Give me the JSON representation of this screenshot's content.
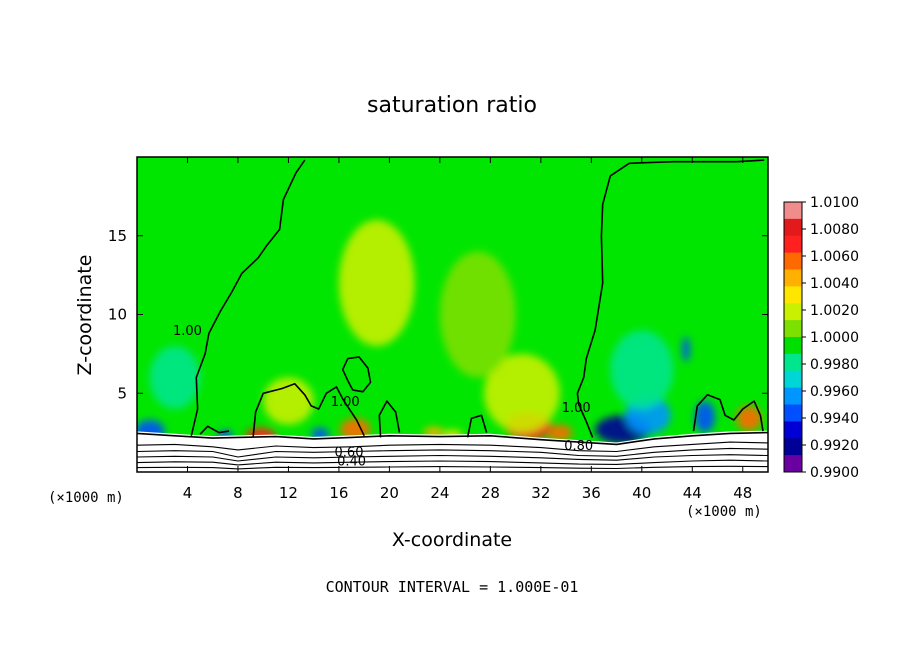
{
  "chart_data": {
    "type": "heatmap",
    "title": "saturation ratio",
    "xlabel": "X-coordinate",
    "ylabel": "Z-coordinate",
    "x_unit": "(×1000 m)",
    "x_unit_right": "(×1000 m)",
    "xlim": [
      0,
      50
    ],
    "ylim": [
      0,
      20
    ],
    "x_ticks": [
      4,
      8,
      12,
      16,
      20,
      24,
      28,
      32,
      36,
      40,
      44,
      48
    ],
    "y_ticks": [
      5,
      10,
      15
    ],
    "footer": "CONTOUR INTERVAL = 1.000E-01",
    "colorbar": {
      "labels": [
        "1.0100",
        "1.0080",
        "1.0060",
        "1.0040",
        "1.0020",
        "1.0000",
        "0.9980",
        "0.9960",
        "0.9940",
        "0.9920",
        "0.9900"
      ],
      "colors": [
        "#f08c8c",
        "#e31a1c",
        "#ff2020",
        "#ff6a00",
        "#ffb000",
        "#ffe600",
        "#c8f000",
        "#7ce000",
        "#00e000",
        "#00e68c",
        "#00d6d6",
        "#0096ff",
        "#0050ff",
        "#0000d6",
        "#000096",
        "#6a00a0"
      ]
    },
    "contour_labels": [
      {
        "text": "1.00",
        "x": 4.0,
        "y": 8.7
      },
      {
        "text": "1.00",
        "x": 16.5,
        "y": 4.2
      },
      {
        "text": "1.00",
        "x": 34.8,
        "y": 3.8
      },
      {
        "text": "0.80",
        "x": 35.0,
        "y": 1.4
      },
      {
        "text": "0.60",
        "x": 16.8,
        "y": 1.0
      },
      {
        "text": "0.40",
        "x": 17.0,
        "y": 0.4
      }
    ],
    "contours": [
      {
        "name": "sat-1.00-left",
        "points": [
          [
            4.3,
            2.3
          ],
          [
            4.8,
            4.0
          ],
          [
            4.7,
            6.0
          ],
          [
            5.4,
            7.5
          ],
          [
            5.7,
            8.8
          ],
          [
            6.6,
            10.2
          ],
          [
            7.5,
            11.4
          ],
          [
            8.3,
            12.6
          ],
          [
            9.6,
            13.6
          ],
          [
            10.3,
            14.4
          ],
          [
            11.3,
            15.4
          ],
          [
            11.6,
            17.3
          ],
          [
            12.6,
            19.0
          ],
          [
            13.3,
            19.8
          ]
        ]
      },
      {
        "name": "sat-1.00-right",
        "points": [
          [
            36.1,
            2.2
          ],
          [
            35.6,
            3.2
          ],
          [
            35.0,
            4.3
          ],
          [
            34.9,
            5.0
          ],
          [
            35.4,
            6.0
          ],
          [
            35.6,
            7.2
          ],
          [
            36.3,
            9.0
          ],
          [
            36.9,
            12.0
          ],
          [
            36.8,
            15.0
          ],
          [
            36.9,
            17.0
          ],
          [
            37.5,
            18.8
          ],
          [
            39.0,
            19.6
          ],
          [
            42.5,
            19.7
          ],
          [
            47.5,
            19.7
          ],
          [
            49.7,
            19.8
          ]
        ]
      },
      {
        "name": "sat-1.00-loop-a",
        "points": [
          [
            17.1,
            5.2
          ],
          [
            16.7,
            5.8
          ],
          [
            16.3,
            6.5
          ],
          [
            16.7,
            7.2
          ],
          [
            17.6,
            7.3
          ],
          [
            18.3,
            6.6
          ],
          [
            18.5,
            5.7
          ],
          [
            17.9,
            5.1
          ],
          [
            17.1,
            5.2
          ]
        ]
      },
      {
        "name": "sat-1.00-bumps",
        "points": [
          [
            9.2,
            2.2
          ],
          [
            9.4,
            3.8
          ],
          [
            10.0,
            5.0
          ],
          [
            11.5,
            5.3
          ],
          [
            12.5,
            5.6
          ],
          [
            13.3,
            4.9
          ],
          [
            13.8,
            4.2
          ],
          [
            14.4,
            4.0
          ],
          [
            15.0,
            5.0
          ],
          [
            15.8,
            5.4
          ],
          [
            16.4,
            4.5
          ],
          [
            17.4,
            3.3
          ],
          [
            18.0,
            2.3
          ]
        ]
      },
      {
        "name": "sat-1.00-bump-b",
        "points": [
          [
            19.3,
            2.2
          ],
          [
            19.2,
            3.6
          ],
          [
            19.8,
            4.5
          ],
          [
            20.5,
            3.8
          ],
          [
            20.8,
            2.5
          ]
        ]
      },
      {
        "name": "sat-1.00-bump-c",
        "points": [
          [
            26.2,
            2.2
          ],
          [
            26.5,
            3.4
          ],
          [
            27.3,
            3.6
          ],
          [
            27.7,
            2.5
          ]
        ]
      },
      {
        "name": "sat-1.00-bump-d",
        "points": [
          [
            5.0,
            2.4
          ],
          [
            5.6,
            2.9
          ],
          [
            6.5,
            2.5
          ],
          [
            7.3,
            2.6
          ]
        ]
      },
      {
        "name": "sat-1.00-east",
        "points": [
          [
            44.1,
            2.6
          ],
          [
            44.4,
            4.2
          ],
          [
            45.2,
            4.9
          ],
          [
            46.2,
            4.6
          ],
          [
            46.6,
            3.6
          ],
          [
            47.3,
            3.3
          ],
          [
            48.0,
            4.0
          ],
          [
            48.9,
            4.5
          ],
          [
            49.4,
            3.6
          ],
          [
            49.6,
            2.6
          ]
        ]
      },
      {
        "name": "sat-0.90",
        "points": [
          [
            0,
            2.45
          ],
          [
            3,
            2.3
          ],
          [
            6,
            2.15
          ],
          [
            8,
            2.2
          ],
          [
            11,
            2.25
          ],
          [
            14,
            2.1
          ],
          [
            17,
            2.2
          ],
          [
            20,
            2.3
          ],
          [
            24,
            2.25
          ],
          [
            28,
            2.3
          ],
          [
            32,
            2.05
          ],
          [
            35,
            1.9
          ],
          [
            38,
            1.75
          ],
          [
            41,
            2.1
          ],
          [
            44,
            2.3
          ],
          [
            47,
            2.45
          ],
          [
            50,
            2.5
          ]
        ]
      },
      {
        "name": "sat-0.80",
        "points": [
          [
            0,
            1.7
          ],
          [
            3,
            1.75
          ],
          [
            6,
            1.6
          ],
          [
            8,
            1.4
          ],
          [
            11,
            1.65
          ],
          [
            14,
            1.55
          ],
          [
            17,
            1.6
          ],
          [
            20,
            1.7
          ],
          [
            24,
            1.75
          ],
          [
            28,
            1.7
          ],
          [
            32,
            1.55
          ],
          [
            35,
            1.35
          ],
          [
            38,
            1.3
          ],
          [
            41,
            1.6
          ],
          [
            44,
            1.75
          ],
          [
            47,
            1.9
          ],
          [
            50,
            1.85
          ]
        ]
      },
      {
        "name": "sat-0.70",
        "points": [
          [
            0,
            1.3
          ],
          [
            3,
            1.35
          ],
          [
            6,
            1.3
          ],
          [
            8,
            0.95
          ],
          [
            11,
            1.3
          ],
          [
            14,
            1.25
          ],
          [
            17,
            1.3
          ],
          [
            20,
            1.35
          ],
          [
            24,
            1.4
          ],
          [
            28,
            1.35
          ],
          [
            32,
            1.25
          ],
          [
            35,
            1.05
          ],
          [
            38,
            1.0
          ],
          [
            41,
            1.25
          ],
          [
            44,
            1.4
          ],
          [
            47,
            1.5
          ],
          [
            50,
            1.45
          ]
        ]
      },
      {
        "name": "sat-0.60",
        "points": [
          [
            0,
            0.95
          ],
          [
            3,
            1.0
          ],
          [
            6,
            0.95
          ],
          [
            8,
            0.7
          ],
          [
            11,
            0.95
          ],
          [
            14,
            0.9
          ],
          [
            17,
            0.95
          ],
          [
            20,
            1.0
          ],
          [
            24,
            1.05
          ],
          [
            28,
            1.0
          ],
          [
            32,
            0.9
          ],
          [
            35,
            0.8
          ],
          [
            38,
            0.75
          ],
          [
            41,
            0.95
          ],
          [
            44,
            1.05
          ],
          [
            47,
            1.1
          ],
          [
            50,
            1.05
          ]
        ]
      },
      {
        "name": "sat-0.50",
        "points": [
          [
            0,
            0.6
          ],
          [
            3,
            0.65
          ],
          [
            6,
            0.62
          ],
          [
            8,
            0.45
          ],
          [
            11,
            0.62
          ],
          [
            14,
            0.58
          ],
          [
            17,
            0.62
          ],
          [
            20,
            0.66
          ],
          [
            24,
            0.7
          ],
          [
            28,
            0.66
          ],
          [
            32,
            0.58
          ],
          [
            35,
            0.5
          ],
          [
            38,
            0.48
          ],
          [
            41,
            0.6
          ],
          [
            44,
            0.7
          ],
          [
            47,
            0.75
          ],
          [
            50,
            0.7
          ]
        ]
      },
      {
        "name": "sat-0.40",
        "points": [
          [
            0,
            0.28
          ],
          [
            3,
            0.3
          ],
          [
            6,
            0.28
          ],
          [
            8,
            0.2
          ],
          [
            11,
            0.3
          ],
          [
            14,
            0.28
          ],
          [
            17,
            0.3
          ],
          [
            20,
            0.32
          ],
          [
            24,
            0.34
          ],
          [
            28,
            0.32
          ],
          [
            32,
            0.28
          ],
          [
            35,
            0.24
          ],
          [
            38,
            0.22
          ],
          [
            41,
            0.3
          ],
          [
            44,
            0.34
          ],
          [
            47,
            0.36
          ],
          [
            50,
            0.34
          ]
        ]
      }
    ],
    "anomalies": [
      {
        "x": 1.0,
        "y": 2.6,
        "v": -0.006,
        "rx": 1.2,
        "ry": 0.7
      },
      {
        "x": 9.8,
        "y": 2.3,
        "v": 0.007,
        "rx": 1.2,
        "ry": 0.5
      },
      {
        "x": 7.0,
        "y": 2.3,
        "v": -0.006,
        "rx": 0.6,
        "ry": 0.35
      },
      {
        "x": 17.3,
        "y": 2.7,
        "v": 0.006,
        "rx": 1.2,
        "ry": 0.7
      },
      {
        "x": 14.5,
        "y": 2.4,
        "v": -0.006,
        "rx": 0.7,
        "ry": 0.4
      },
      {
        "x": 31.0,
        "y": 2.9,
        "v": 0.007,
        "rx": 1.8,
        "ry": 0.9
      },
      {
        "x": 33.5,
        "y": 2.5,
        "v": 0.006,
        "rx": 1.0,
        "ry": 0.5
      },
      {
        "x": 38.5,
        "y": 2.7,
        "v": -0.008,
        "rx": 2.2,
        "ry": 0.9
      },
      {
        "x": 40.5,
        "y": 3.6,
        "v": -0.004,
        "rx": 1.8,
        "ry": 1.2
      },
      {
        "x": 48.5,
        "y": 3.4,
        "v": 0.006,
        "rx": 1.0,
        "ry": 0.8
      },
      {
        "x": 45.0,
        "y": 3.5,
        "v": -0.005,
        "rx": 0.8,
        "ry": 1.0
      },
      {
        "x": 23.5,
        "y": 2.5,
        "v": 0.004,
        "rx": 0.8,
        "ry": 0.35
      },
      {
        "x": 12.0,
        "y": 4.5,
        "v": 0.002,
        "rx": 2.0,
        "ry": 1.5
      },
      {
        "x": 30.5,
        "y": 5.0,
        "v": 0.0025,
        "rx": 3.0,
        "ry": 2.5
      },
      {
        "x": 40.0,
        "y": 6.5,
        "v": -0.0015,
        "rx": 2.5,
        "ry": 2.5
      },
      {
        "x": 19.0,
        "y": 12.0,
        "v": 0.0015,
        "rx": 3.0,
        "ry": 4.0
      },
      {
        "x": 27.0,
        "y": 10.0,
        "v": 0.0012,
        "rx": 3.0,
        "ry": 4.0
      },
      {
        "x": 3.0,
        "y": 6.0,
        "v": -0.0015,
        "rx": 2.0,
        "ry": 2.0
      },
      {
        "x": 43.5,
        "y": 7.8,
        "v": -0.006,
        "rx": 0.3,
        "ry": 0.8
      },
      {
        "x": 25.0,
        "y": 2.35,
        "v": 0.003,
        "rx": 0.8,
        "ry": 0.3
      }
    ]
  }
}
